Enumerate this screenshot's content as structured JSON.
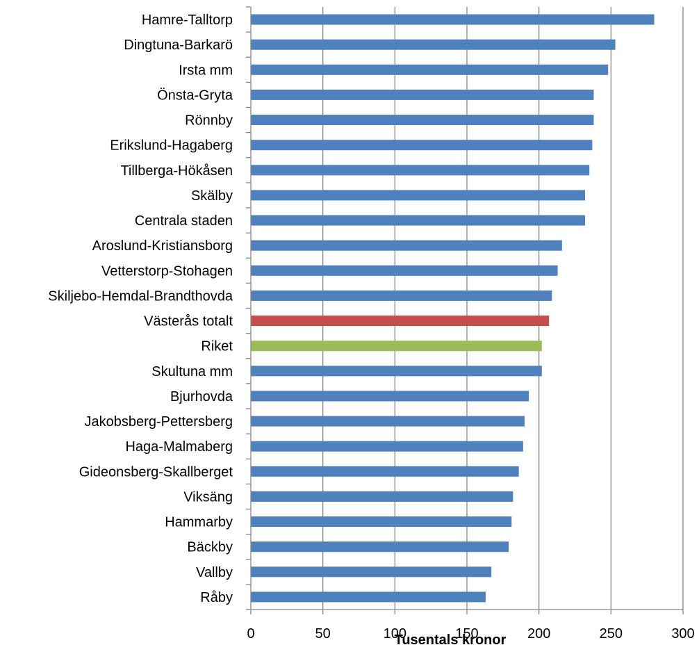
{
  "chart_data": {
    "type": "bar",
    "orientation": "horizontal",
    "categories": [
      "Hamre-Talltorp",
      "Dingtuna-Barkarö",
      "Irsta mm",
      "Önsta-Gryta",
      "Rönnby",
      "Erikslund-Hagaberg",
      "Tillberga-Hökåsen",
      "Skälby",
      "Centrala staden",
      "Aroslund-Kristiansborg",
      "Vetterstorp-Stohagen",
      "Skiljebo-Hemdal-Brandthovda",
      "Västerås totalt",
      "Riket",
      "Skultuna mm",
      "Bjurhovda",
      "Jakobsberg-Pettersberg",
      "Haga-Malmaberg",
      "Gideonsberg-Skallberget",
      "Viksäng",
      "Hammarby",
      "Bäckby",
      "Vallby",
      "Råby"
    ],
    "values": [
      280,
      253,
      248,
      238,
      238,
      237,
      235,
      232,
      232,
      216,
      213,
      209,
      207,
      202,
      202,
      193,
      190,
      189,
      186,
      182,
      181,
      179,
      167,
      163
    ],
    "bar_colors": [
      "#4f81bd",
      "#4f81bd",
      "#4f81bd",
      "#4f81bd",
      "#4f81bd",
      "#4f81bd",
      "#4f81bd",
      "#4f81bd",
      "#4f81bd",
      "#4f81bd",
      "#4f81bd",
      "#4f81bd",
      "#c0504d",
      "#9bbb59",
      "#4f81bd",
      "#4f81bd",
      "#4f81bd",
      "#4f81bd",
      "#4f81bd",
      "#4f81bd",
      "#4f81bd",
      "#4f81bd",
      "#4f81bd",
      "#4f81bd"
    ],
    "xlabel": "Tusentals kronor",
    "xlim": [
      0,
      300
    ],
    "xticks": [
      "0",
      "50",
      "100",
      "150",
      "200",
      "250",
      "300"
    ],
    "grid": "vertical gridlines at each major tick",
    "legend": "none"
  }
}
